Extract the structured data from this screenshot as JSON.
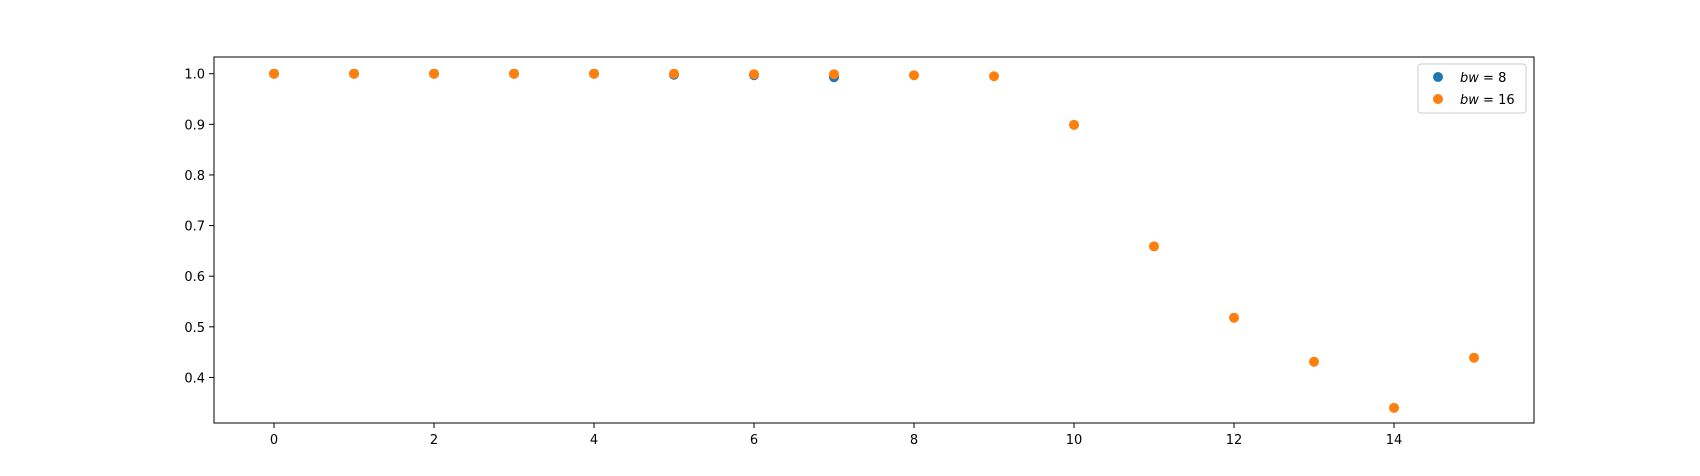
{
  "chart_data": {
    "type": "scatter",
    "x": [
      0,
      1,
      2,
      3,
      4,
      5,
      6,
      7,
      8,
      9,
      10,
      11,
      12,
      13,
      14,
      15
    ],
    "series": [
      {
        "name": "bw = 8",
        "label_var": "bw",
        "label_value": "8",
        "color": "#1f77b4",
        "x": [
          0,
          1,
          2,
          3,
          4,
          5,
          6,
          7
        ],
        "values": [
          1.0,
          1.0,
          1.0,
          1.0,
          1.0,
          0.998,
          0.997,
          0.993
        ]
      },
      {
        "name": "bw = 16",
        "label_var": "bw",
        "label_value": "16",
        "color": "#ff7f0e",
        "x": [
          0,
          1,
          2,
          3,
          4,
          5,
          6,
          7,
          8,
          9,
          10,
          11,
          12,
          13,
          14,
          15
        ],
        "values": [
          1.0,
          1.0,
          1.0,
          1.0,
          1.0,
          1.0,
          0.999,
          0.999,
          0.997,
          0.995,
          0.899,
          0.659,
          0.518,
          0.431,
          0.34,
          0.439
        ]
      }
    ],
    "xlim": [
      -0.75,
      15.75
    ],
    "ylim": [
      0.31,
      1.033
    ],
    "x_ticks": [
      0,
      2,
      4,
      6,
      8,
      10,
      12,
      14
    ],
    "x_tick_labels": [
      "0",
      "2",
      "4",
      "6",
      "8",
      "10",
      "12",
      "14"
    ],
    "y_ticks": [
      0.4,
      0.5,
      0.6,
      0.7,
      0.8,
      0.9,
      1.0
    ],
    "y_tick_labels": [
      "0.4",
      "0.5",
      "0.6",
      "0.7",
      "0.8",
      "0.9",
      "1.0"
    ],
    "title": "",
    "xlabel": "",
    "ylabel": "",
    "grid": false,
    "legend_position": "top-right"
  }
}
